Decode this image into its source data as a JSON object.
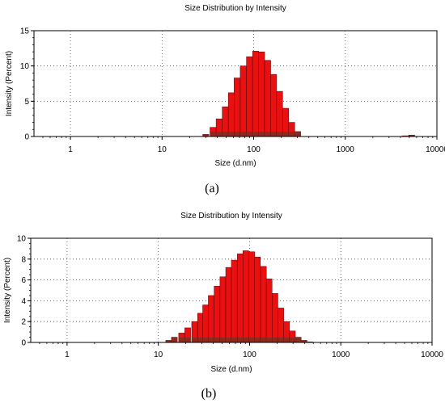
{
  "chart_data": [
    {
      "type": "bar",
      "title": "Size Distribution by Intensity",
      "xlabel": "Size (d.nm)",
      "ylabel": "Intensity (Percent)",
      "caption": "(a)",
      "x_scale": "log",
      "xlim": [
        0.4,
        10000
      ],
      "ylim": [
        0,
        15
      ],
      "x_ticks": [
        "1",
        "10",
        "100",
        "1000",
        "10000"
      ],
      "y_ticks": [
        "0",
        "5",
        "10",
        "15"
      ],
      "grid": true,
      "x": [
        30,
        36,
        42,
        49,
        57,
        66,
        77,
        90,
        105,
        122,
        142,
        165,
        192,
        223,
        260,
        302,
        4500,
        5300
      ],
      "values": [
        0.3,
        1.3,
        2.5,
        4.2,
        6.2,
        8.3,
        10.0,
        11.3,
        12.1,
        12.0,
        10.8,
        8.8,
        6.4,
        4.0,
        2.0,
        0.7,
        0.1,
        0.2
      ]
    },
    {
      "type": "bar",
      "title": "Size Distribution by Intensity",
      "xlabel": "Size (d.nm)",
      "ylabel": "Intensity (Percent)",
      "caption": "(b)",
      "x_scale": "log",
      "xlim": [
        0.4,
        10000
      ],
      "ylim": [
        0,
        10
      ],
      "x_ticks": [
        "1",
        "10",
        "100",
        "1000",
        "10000"
      ],
      "y_ticks": [
        "0",
        "2",
        "4",
        "6",
        "8",
        "10"
      ],
      "grid": true,
      "x": [
        13,
        15,
        18,
        21,
        25,
        29,
        33,
        38,
        44,
        51,
        59,
        68,
        79,
        91,
        106,
        122,
        142,
        164,
        190,
        220,
        255,
        295,
        342,
        396,
        458
      ],
      "values": [
        0.2,
        0.5,
        0.9,
        1.4,
        2.0,
        2.8,
        3.6,
        4.5,
        5.4,
        6.3,
        7.2,
        7.9,
        8.5,
        8.8,
        8.7,
        8.2,
        7.3,
        6.1,
        4.7,
        3.3,
        2.0,
        1.1,
        0.5,
        0.2,
        0.05
      ]
    }
  ]
}
